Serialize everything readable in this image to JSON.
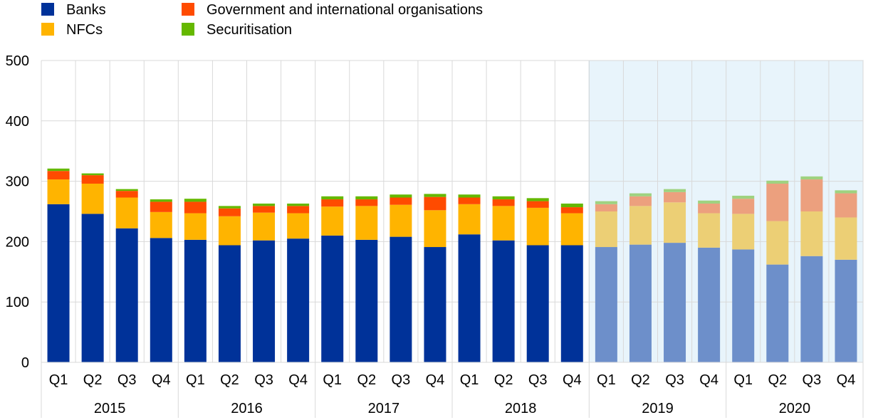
{
  "chart_data": {
    "type": "bar",
    "stacked": true,
    "title": "",
    "xlabel": "",
    "ylabel": "",
    "ylim": [
      0,
      500
    ],
    "yticks": [
      0,
      100,
      200,
      300,
      400,
      500
    ],
    "grid": true,
    "legend_position": "top-left",
    "categories": [
      "Q1",
      "Q2",
      "Q3",
      "Q4",
      "Q1",
      "Q2",
      "Q3",
      "Q4",
      "Q1",
      "Q2",
      "Q3",
      "Q4",
      "Q1",
      "Q2",
      "Q3",
      "Q4",
      "Q1",
      "Q2",
      "Q3",
      "Q4",
      "Q1",
      "Q2",
      "Q3",
      "Q4"
    ],
    "years": [
      "2015",
      "2016",
      "2017",
      "2018",
      "2019",
      "2020"
    ],
    "projected_years": [
      "2019",
      "2020"
    ],
    "series": [
      {
        "name": "Banks",
        "color": "#003299",
        "projected_color": "#6d8fca",
        "values": [
          262,
          246,
          222,
          206,
          203,
          194,
          202,
          205,
          210,
          203,
          208,
          191,
          212,
          202,
          194,
          194,
          191,
          195,
          198,
          190,
          187,
          162,
          176,
          170
        ]
      },
      {
        "name": "NFCs",
        "color": "#ffb400",
        "projected_color": "#eccf75",
        "values": [
          41,
          50,
          51,
          43,
          44,
          48,
          46,
          42,
          48,
          56,
          53,
          61,
          50,
          57,
          62,
          53,
          59,
          64,
          67,
          57,
          59,
          72,
          74,
          70
        ]
      },
      {
        "name": "Government and international organisations",
        "color": "#ff4b00",
        "projected_color": "#eca07e",
        "values": [
          14,
          14,
          11,
          17,
          19,
          13,
          11,
          12,
          12,
          11,
          12,
          22,
          11,
          11,
          11,
          10,
          12,
          16,
          17,
          16,
          25,
          62,
          53,
          40
        ]
      },
      {
        "name": "Securitisation",
        "color": "#65b800",
        "projected_color": "#9fd280",
        "values": [
          4,
          3,
          3,
          4,
          5,
          4,
          4,
          4,
          5,
          5,
          5,
          5,
          5,
          5,
          5,
          6,
          5,
          5,
          5,
          5,
          5,
          5,
          5,
          5
        ]
      }
    ]
  }
}
